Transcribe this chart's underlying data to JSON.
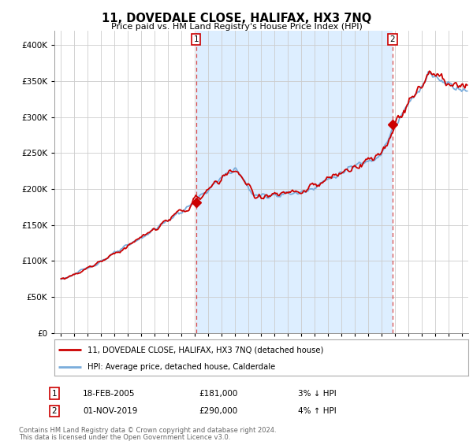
{
  "title": "11, DOVEDALE CLOSE, HALIFAX, HX3 7NQ",
  "subtitle": "Price paid vs. HM Land Registry's House Price Index (HPI)",
  "legend_line1": "11, DOVEDALE CLOSE, HALIFAX, HX3 7NQ (detached house)",
  "legend_line2": "HPI: Average price, detached house, Calderdale",
  "annotation1_label": "1",
  "annotation1_date": "18-FEB-2005",
  "annotation1_price": "£181,000",
  "annotation1_hpi": "3% ↓ HPI",
  "annotation1_year": 2005.12,
  "annotation1_value": 181000,
  "annotation2_label": "2",
  "annotation2_date": "01-NOV-2019",
  "annotation2_price": "£290,000",
  "annotation2_hpi": "4% ↑ HPI",
  "annotation2_year": 2019.83,
  "annotation2_value": 290000,
  "footer_line1": "Contains HM Land Registry data © Crown copyright and database right 2024.",
  "footer_line2": "This data is licensed under the Open Government Licence v3.0.",
  "red_color": "#cc0000",
  "blue_color": "#7aaddc",
  "fill_color": "#ddeeff",
  "background_color": "#ffffff",
  "grid_color": "#cccccc",
  "ylim_min": 0,
  "ylim_max": 420000,
  "xlim_min": 1994.5,
  "xlim_max": 2025.5
}
